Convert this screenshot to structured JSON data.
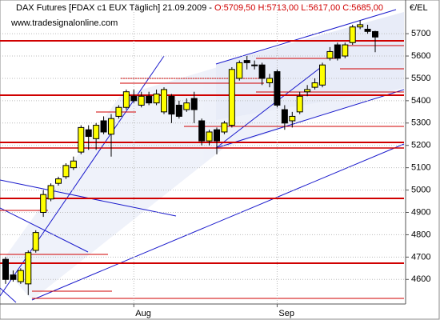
{
  "chart_data": {
    "type": "candlestick",
    "title": "DAX Futures [FDAX c1 EUX  Täglich] 21.09.2009 -",
    "ohlc_text": "O:5709,50 H:5713,00 L:5617,00 C:5685,00",
    "subtitle": "www.tradesignalonline.com",
    "y_axis_label": "€/EL",
    "categories": [
      null,
      null,
      null,
      null,
      null,
      null,
      null,
      null,
      null,
      null,
      null,
      null,
      null,
      null,
      null,
      null,
      null,
      "Aug",
      null,
      null,
      null,
      null,
      null,
      null,
      null,
      null,
      null,
      null,
      null,
      null,
      null,
      null,
      null,
      null,
      null,
      null,
      "Sep",
      null,
      null,
      null,
      null,
      null,
      null,
      null,
      null,
      null,
      null,
      null,
      null,
      null
    ],
    "series": [
      {
        "open": [
          4690,
          4620,
          4590,
          4580,
          4730,
          4900,
          4960,
          5030,
          5060,
          5100,
          5170,
          5270,
          5230,
          5310,
          5250,
          5330,
          5370,
          5420,
          5380,
          5420,
          5390,
          5350,
          5420,
          5380,
          5360,
          5410,
          5310,
          5220,
          5270,
          5260,
          5290,
          5500,
          5580,
          5560,
          5560,
          5480,
          5530,
          5360,
          5310,
          5350,
          5440,
          5460,
          5470,
          5590,
          5650,
          5600,
          5660,
          5730,
          5720,
          5709.5
        ],
        "high": [
          4700,
          4640,
          4650,
          4730,
          4820,
          5000,
          5030,
          5060,
          5120,
          5150,
          5290,
          5290,
          5300,
          5330,
          5340,
          5380,
          5450,
          5450,
          5440,
          5440,
          5450,
          5460,
          5430,
          5400,
          5410,
          5440,
          5320,
          5270,
          5280,
          5310,
          5550,
          5580,
          5600,
          5580,
          5570,
          5520,
          5540,
          5380,
          5350,
          5440,
          5470,
          5500,
          5570,
          5640,
          5660,
          5660,
          5740,
          5760,
          5740,
          5713
        ],
        "low": [
          4580,
          4590,
          4580,
          4530,
          4720,
          4880,
          4950,
          5020,
          5050,
          5090,
          5160,
          5180,
          5180,
          5250,
          5150,
          5320,
          5360,
          5390,
          5370,
          5380,
          5380,
          5340,
          5300,
          5320,
          5350,
          5300,
          5200,
          5200,
          5160,
          5250,
          5280,
          5490,
          5540,
          5540,
          5470,
          5460,
          5370,
          5270,
          5280,
          5340,
          5420,
          5450,
          5460,
          5580,
          5580,
          5590,
          5650,
          5720,
          5700,
          5617
        ],
        "close": [
          4600,
          4600,
          4640,
          4720,
          4810,
          4980,
          5020,
          5050,
          5110,
          5130,
          5280,
          5240,
          5290,
          5260,
          5320,
          5370,
          5440,
          5400,
          5420,
          5390,
          5430,
          5450,
          5340,
          5330,
          5390,
          5360,
          5220,
          5260,
          5220,
          5300,
          5540,
          5570,
          5570,
          5560,
          5500,
          5500,
          5380,
          5300,
          5330,
          5420,
          5450,
          5480,
          5560,
          5620,
          5590,
          5650,
          5730,
          5740,
          5710,
          5685
        ]
      }
    ],
    "up_color": "#ffff00",
    "down_color": "#000000",
    "ylim": [
      4490,
      5840
    ],
    "yticks": [
      4600,
      4700,
      4800,
      4900,
      5000,
      5100,
      5200,
      5300,
      5400,
      5500,
      5600,
      5700
    ],
    "grid": true
  }
}
